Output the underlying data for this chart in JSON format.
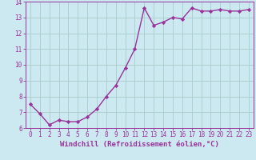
{
  "x": [
    0,
    1,
    2,
    3,
    4,
    5,
    6,
    7,
    8,
    9,
    10,
    11,
    12,
    13,
    14,
    15,
    16,
    17,
    18,
    19,
    20,
    21,
    22,
    23
  ],
  "y": [
    7.5,
    6.9,
    6.2,
    6.5,
    6.4,
    6.4,
    6.7,
    7.2,
    8.0,
    8.7,
    9.8,
    11.0,
    13.6,
    12.5,
    12.7,
    13.0,
    12.9,
    13.6,
    13.4,
    13.4,
    13.5,
    13.4,
    13.4,
    13.5
  ],
  "line_color": "#993399",
  "marker": "D",
  "marker_size": 2.2,
  "bg_color": "#cce8f0",
  "grid_color": "#aacccc",
  "xlabel": "Windchill (Refroidissement éolien,°C)",
  "xlabel_color": "#993399",
  "tick_color": "#993399",
  "spine_color": "#993399",
  "xlim": [
    -0.5,
    23.5
  ],
  "ylim": [
    6,
    14
  ],
  "yticks": [
    6,
    7,
    8,
    9,
    10,
    11,
    12,
    13,
    14
  ],
  "xticks": [
    0,
    1,
    2,
    3,
    4,
    5,
    6,
    7,
    8,
    9,
    10,
    11,
    12,
    13,
    14,
    15,
    16,
    17,
    18,
    19,
    20,
    21,
    22,
    23
  ],
  "xtick_labels": [
    "0",
    "1",
    "2",
    "3",
    "4",
    "5",
    "6",
    "7",
    "8",
    "9",
    "10",
    "11",
    "12",
    "13",
    "14",
    "15",
    "16",
    "17",
    "18",
    "19",
    "20",
    "21",
    "22",
    "23"
  ],
  "font_size_ticks": 5.5,
  "font_size_xlabel": 6.5,
  "linewidth": 1.0
}
